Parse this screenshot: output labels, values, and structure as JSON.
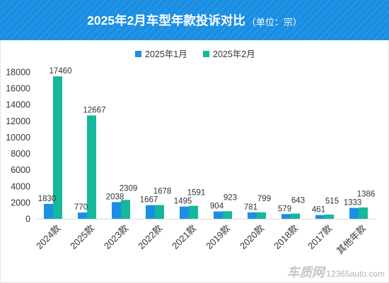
{
  "theme": {
    "banner_color": "#1a8ee2"
  },
  "chart_data": {
    "type": "bar",
    "title": "2025年2月车型年款投诉对比",
    "subtitle": "（单位：宗）",
    "categories": [
      "2024款",
      "2025款",
      "2023款",
      "2022款",
      "2021款",
      "2019款",
      "2020款",
      "2018款",
      "2017款",
      "其他年款"
    ],
    "series": [
      {
        "name": "2025年1月",
        "color": "#1b8fe3",
        "values": [
          1830,
          770,
          2038,
          1667,
          1495,
          904,
          781,
          579,
          461,
          1333
        ]
      },
      {
        "name": "2025年2月",
        "color": "#14b89c",
        "values": [
          17460,
          12667,
          2309,
          1678,
          1591,
          923,
          799,
          643,
          515,
          1386
        ]
      }
    ],
    "ylim": [
      0,
      18000
    ],
    "yticks": [
      0,
      2000,
      4000,
      6000,
      8000,
      10000,
      12000,
      14000,
      16000,
      18000
    ],
    "grid": false,
    "legend": "top-center",
    "data_labels": true
  },
  "watermark": {
    "logo": "车质网",
    "site": "12365auto.com"
  }
}
